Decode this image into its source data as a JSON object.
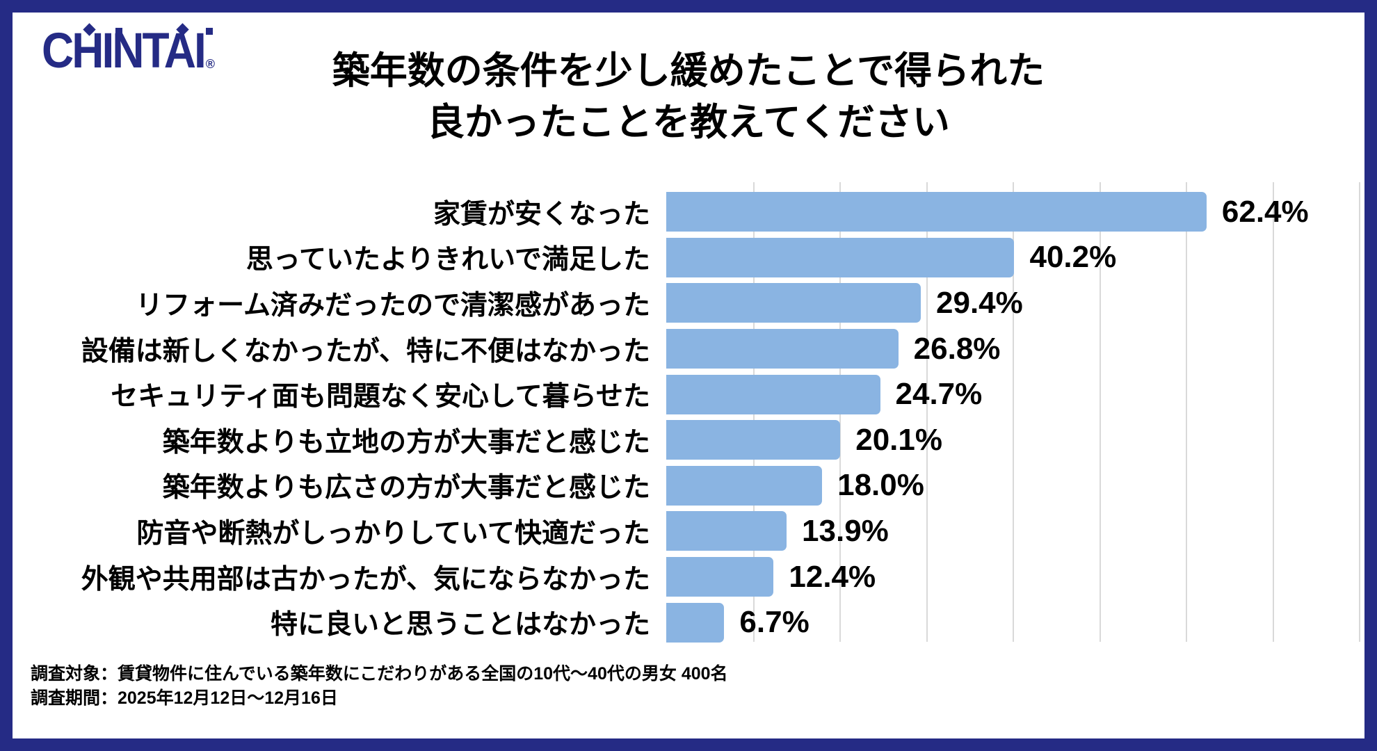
{
  "brand": {
    "name": "CHINTAI",
    "registered": "®"
  },
  "title": {
    "line1": "築年数の条件を少し緩めたことで得られた",
    "line2": "良かったことを教えてください"
  },
  "chart_data": {
    "type": "bar",
    "orientation": "horizontal",
    "title": "築年数の条件を少し緩めたことで得られた良かったことを教えてください",
    "categories": [
      "家賃が安くなった",
      "思っていたよりきれいで満足した",
      "リフォーム済みだったので清潔感があった",
      "設備は新しくなかったが、特に不便はなかった",
      "セキュリティ面も問題なく安心して暮らせた",
      "築年数よりも立地の方が大事だと感じた",
      "築年数よりも広さの方が大事だと感じた",
      "防音や断熱がしっかりしていて快適だった",
      "外観や共用部は古かったが、気にならなかった",
      "特に良いと思うことはなかった"
    ],
    "values": [
      62.4,
      40.2,
      29.4,
      26.8,
      24.7,
      20.1,
      18.0,
      13.9,
      12.4,
      6.7
    ],
    "value_labels": [
      "62.4%",
      "40.2%",
      "29.4%",
      "26.8%",
      "24.7%",
      "20.1%",
      "18.0%",
      "13.9%",
      "12.4%",
      "6.7%"
    ],
    "xlabel": "",
    "ylabel": "",
    "xlim": [
      0,
      80
    ],
    "grid_step": 10,
    "grid": "vertical",
    "legend": "none",
    "bar_color": "#8AB4E2",
    "gridline_color": "#D9D9D9"
  },
  "footer": {
    "line1": "調査対象：賃貸物件に住んでいる築年数にこだわりがある全国の10代～40代の男女 400名",
    "line2": "調査期間：2025年12月12日～12月16日"
  },
  "colors": {
    "frame": "#252B85",
    "logo": "#252B85",
    "text": "#000000"
  }
}
